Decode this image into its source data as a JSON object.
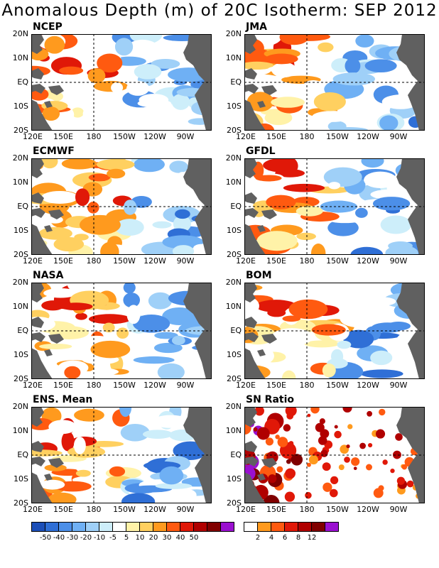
{
  "title": "Anomalous Depth (m) of 20C Isotherm: SEP 2012",
  "lat_labels": [
    "20N",
    "10N",
    "EQ",
    "10S",
    "20S"
  ],
  "lon_labels": [
    "120E",
    "150E",
    "180",
    "150W",
    "120W",
    "90W"
  ],
  "panels": [
    {
      "id": "ncep",
      "label": "NCEP"
    },
    {
      "id": "jma",
      "label": "JMA"
    },
    {
      "id": "ecmwf",
      "label": "ECMWF"
    },
    {
      "id": "gfdl",
      "label": "GFDL"
    },
    {
      "id": "nasa",
      "label": "NASA"
    },
    {
      "id": "bom",
      "label": "BOM"
    },
    {
      "id": "ens",
      "label": "ENS. Mean"
    },
    {
      "id": "sn",
      "label": "SN Ratio"
    }
  ],
  "colorbar_anomaly": {
    "colors": [
      "#1c4fb8",
      "#2f6fd6",
      "#4c8fe8",
      "#6fb0f4",
      "#9fd0f8",
      "#cdeefa",
      "#ffffff",
      "#fff2a8",
      "#ffd060",
      "#ff9a1e",
      "#ff5a10",
      "#e01808",
      "#b00000",
      "#800000",
      "#9a10d0"
    ],
    "labels": [
      "-50",
      "-40",
      "-30",
      "-20",
      "-10",
      "-5",
      "5",
      "10",
      "20",
      "30",
      "40",
      "50"
    ]
  },
  "colorbar_sn": {
    "colors": [
      "#ffffff",
      "#ff9a1e",
      "#ff5a10",
      "#e01808",
      "#b00000",
      "#800000",
      "#9a10d0"
    ],
    "labels": [
      "2",
      "4",
      "6",
      "8",
      "12"
    ]
  },
  "colors": {
    "land": "#606060"
  }
}
